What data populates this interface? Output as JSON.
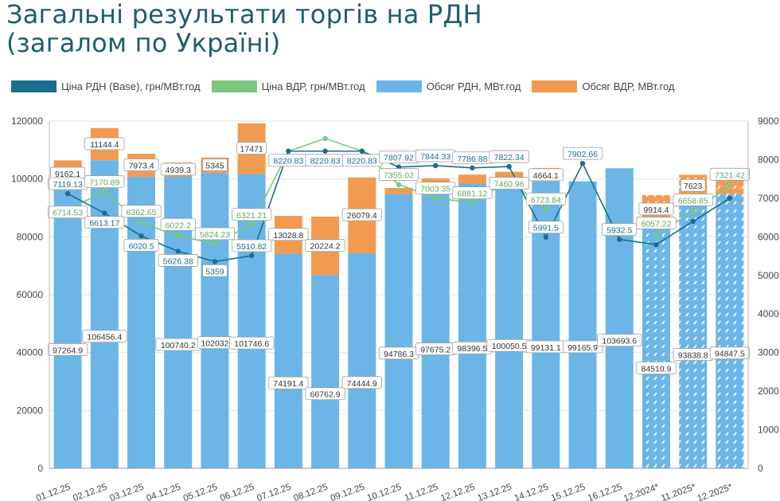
{
  "title": {
    "line1": "Загальні результати торгів на РДН",
    "line2": "(загалом по Україні)"
  },
  "legend": [
    {
      "label": "Ціна РДН (Base), грн/МВт.год",
      "color": "#1a6e8e"
    },
    {
      "label": "Ціна ВДР, грн/МВт.год",
      "color": "#7ac77d"
    },
    {
      "label": "Обсяг РДН, МВт.год",
      "color": "#6bb6e6"
    },
    {
      "label": "Обсяг ВДР, МВт.год",
      "color": "#f29b50"
    }
  ],
  "colors": {
    "rdn_price": "#1a6e8e",
    "vdr_price": "#7ac77d",
    "rdn_volume": "#6bb6e6",
    "vdr_volume": "#f29b50"
  },
  "chart_data": {
    "type": "bar",
    "title": "Загальні результати торгів на РДН (загалом по Україні)",
    "categories": [
      "01.12.25",
      "02.12.25",
      "03.12.25",
      "04.12.25",
      "05.12.25",
      "06.12.25",
      "07.12.25",
      "08.12.25",
      "09.12.25",
      "10.12.25",
      "11.12.25",
      "12.12.25",
      "13.12.25",
      "14.12.25",
      "15.12.25",
      "16.12.25",
      "12.2024*",
      "11.2025*",
      "12.2025*"
    ],
    "hatched_from_index": 16,
    "y_left": {
      "ticks": [
        "0",
        "20000",
        "40000",
        "60000",
        "80000",
        "100000",
        "120000"
      ],
      "ylim": [
        0,
        120000
      ]
    },
    "y_right": {
      "ticks": [
        "0",
        "1000",
        "2000",
        "3000",
        "4000",
        "5000",
        "6000",
        "7000",
        "8000",
        "9000"
      ],
      "ylim": [
        0,
        9000
      ]
    },
    "series": [
      {
        "name": "Обсяг РДН, МВт.год",
        "kind": "bar",
        "axis": "left",
        "stack": "vol",
        "values": [
          97264.9,
          106456.4,
          100740.2,
          100740.2,
          102032,
          101746.6,
          74191.4,
          66762.9,
          74444.9,
          94786.3,
          97675.2,
          98396.5,
          100050.5,
          99131.1,
          99165.9,
          103693.6,
          84510.9,
          93838.8,
          94847.5
        ],
        "labels": [
          "97264.9",
          "106456.4",
          "",
          "100740.2",
          "102032",
          "101746.6",
          "74191.4",
          "66762.9",
          "74444.9",
          "94786.3",
          "97675.2",
          "98396.5",
          "100050.5",
          "99131.1",
          "99165.9",
          "103693.6",
          "84510.9",
          "93838.8",
          "94847.5"
        ]
      },
      {
        "name": "Обсяг ВДР, МВт.год",
        "kind": "bar",
        "axis": "left",
        "stack": "vol",
        "values": [
          9162.1,
          11144.4,
          7973.4,
          4939.3,
          5345,
          17471,
          13028.8,
          20224.2,
          26079.4,
          2100,
          2500,
          3100,
          2400,
          4664.1,
          0,
          0,
          9914.4,
          7623,
          5200
        ],
        "labels": [
          "9162.1",
          "11144.4",
          "7973.4",
          "4939.3",
          "5345",
          "17471",
          "13028.8",
          "20224.2",
          "26079.4",
          "",
          "",
          "",
          "",
          "4664.1",
          "",
          "",
          "9914.4",
          "7623",
          ""
        ]
      },
      {
        "name": "Ціна РДН (Base), грн/МВт.год",
        "kind": "line",
        "axis": "right",
        "values": [
          7119.13,
          6613.17,
          6020.5,
          5626.38,
          5359,
          5510.82,
          8220.83,
          8220.83,
          8220.83,
          7807.92,
          7844.33,
          7786.88,
          7822.34,
          5991.5,
          7902.66,
          5932.5,
          5800,
          6400,
          7000
        ],
        "labels": [
          "7119.13",
          "6613.17",
          "6020.5",
          "5626.38",
          "5359",
          "5510.82",
          "8220.83",
          "8220.83",
          "8220.83",
          "7807.92",
          "7844.33",
          "7786.88",
          "7822.34",
          "5991.5",
          "7902.66",
          "5932.5",
          "",
          "",
          ""
        ]
      },
      {
        "name": "Ціна ВДР, грн/МВт.год",
        "kind": "line",
        "axis": "right",
        "values": [
          6714.53,
          7170.89,
          6362.65,
          6022.2,
          5824.23,
          6321.21,
          8220.83,
          8550,
          8220.83,
          7355.02,
          7003.35,
          6881.12,
          7460.96,
          6723.84,
          null,
          null,
          6057.22,
          6658.85,
          7321.42
        ],
        "labels": [
          "6714.53",
          "7170.89",
          "6362.65",
          "6022.2",
          "5824.23",
          "6321.21",
          "",
          "",
          "",
          "7355.02",
          "7003.35",
          "6881.12",
          "7460.96",
          "6723.84",
          "",
          "",
          "6057.22",
          "6658.85",
          "7321.42"
        ]
      }
    ]
  }
}
